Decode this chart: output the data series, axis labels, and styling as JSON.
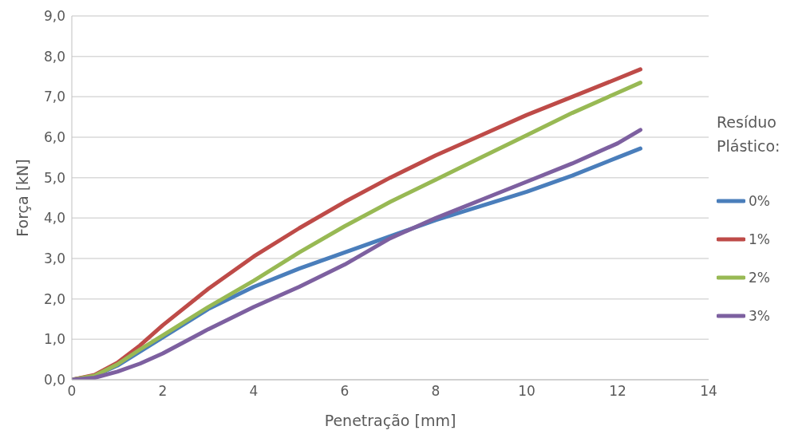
{
  "chart_data": {
    "type": "line",
    "xlabel": "Penetração [mm]",
    "ylabel": "Força [kN]",
    "legend_title": "Resíduo Plástico:",
    "legend": "right",
    "grid": "y",
    "marker": "none",
    "line_style": "solid",
    "x": [
      0,
      0.5,
      1,
      1.5,
      2,
      3,
      4,
      5,
      6,
      7,
      8,
      9,
      10,
      11,
      12,
      12.5
    ],
    "xlim": [
      0,
      14
    ],
    "xticks": [
      0,
      2,
      4,
      6,
      8,
      10,
      12,
      14
    ],
    "ylim": [
      0,
      9
    ],
    "yticks": [
      {
        "value": 0,
        "label": "0,0"
      },
      {
        "value": 1,
        "label": "1,0"
      },
      {
        "value": 2,
        "label": "2,0"
      },
      {
        "value": 3,
        "label": "3,0"
      },
      {
        "value": 4,
        "label": "4,0"
      },
      {
        "value": 5,
        "label": "5,0"
      },
      {
        "value": 6,
        "label": "6,0"
      },
      {
        "value": 7,
        "label": "7,0"
      },
      {
        "value": 8,
        "label": "8,0"
      },
      {
        "value": 9,
        "label": "9,0"
      }
    ],
    "series": [
      {
        "name": "0%",
        "color": "#4a7ebb",
        "values": [
          0,
          0.1,
          0.35,
          0.7,
          1.05,
          1.75,
          2.3,
          2.75,
          3.15,
          3.55,
          3.95,
          4.3,
          4.65,
          5.05,
          5.5,
          5.72
        ]
      },
      {
        "name": "1%",
        "color": "#be4b48",
        "values": [
          0,
          0.12,
          0.42,
          0.85,
          1.35,
          2.25,
          3.05,
          3.75,
          4.4,
          5.0,
          5.55,
          6.05,
          6.55,
          7.0,
          7.45,
          7.68
        ]
      },
      {
        "name": "2%",
        "color": "#98b954",
        "values": [
          0,
          0.1,
          0.38,
          0.75,
          1.1,
          1.8,
          2.45,
          3.15,
          3.8,
          4.4,
          4.95,
          5.5,
          6.05,
          6.6,
          7.1,
          7.35
        ]
      },
      {
        "name": "3%",
        "color": "#7d60a0",
        "values": [
          0,
          0.05,
          0.2,
          0.4,
          0.65,
          1.25,
          1.8,
          2.3,
          2.85,
          3.5,
          4.0,
          4.45,
          4.9,
          5.35,
          5.85,
          6.18
        ]
      }
    ]
  }
}
